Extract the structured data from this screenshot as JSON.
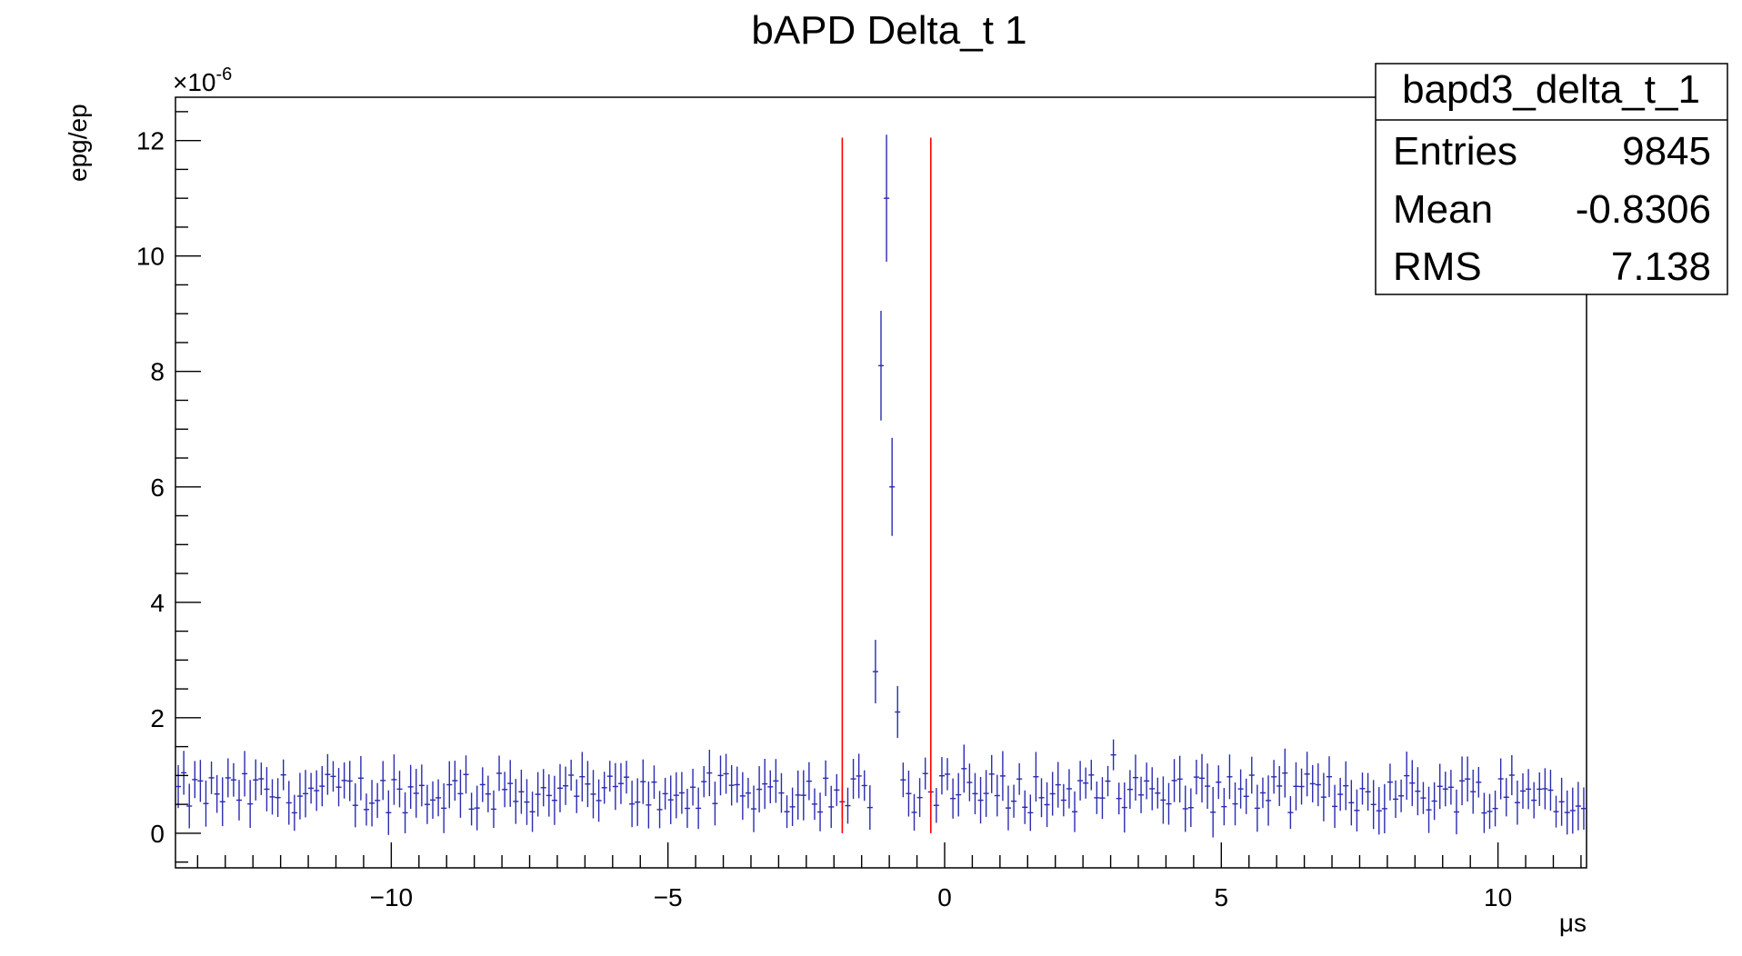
{
  "chart_data": {
    "type": "scatter",
    "title": "bAPD Delta_t 1",
    "xlabel": "μs",
    "ylabel": "epg/ep",
    "y_multiplier_label": "×10",
    "y_multiplier_exponent": "-6",
    "xlim": [
      -13.9,
      11.6
    ],
    "ylim": [
      -0.6,
      12.75
    ],
    "x_ticks": [
      -10,
      -5,
      0,
      5,
      10
    ],
    "x_tick_labels": [
      "−10",
      "−5",
      "0",
      "5",
      "10"
    ],
    "y_ticks": [
      0,
      2,
      4,
      6,
      8,
      10,
      12
    ],
    "y_tick_labels": [
      "0",
      "2",
      "4",
      "6",
      "8",
      "10",
      "12"
    ],
    "grid": false,
    "bin_width": 0.1,
    "background_level": 0.7,
    "background_error": 0.35,
    "series": [
      {
        "name": "bapd3_delta_t_1",
        "color": "#2b2bb0",
        "peak_points": [
          {
            "x": -1.25,
            "y": 2.8,
            "err": 0.55
          },
          {
            "x": -1.15,
            "y": 8.1,
            "err": 0.95
          },
          {
            "x": -1.05,
            "y": 11.0,
            "err": 1.1
          },
          {
            "x": -0.95,
            "y": 6.0,
            "err": 0.85
          },
          {
            "x": -0.85,
            "y": 2.1,
            "err": 0.45
          }
        ]
      }
    ],
    "cut_lines": {
      "color": "#ff0000",
      "x": [
        -1.85,
        -0.25
      ],
      "y_range": [
        0,
        12.05
      ]
    }
  },
  "stats_box": {
    "title": "bapd3_delta_t_1",
    "rows": [
      {
        "label": "Entries",
        "value": "9845"
      },
      {
        "label": "Mean",
        "value": "-0.8306"
      },
      {
        "label": "RMS",
        "value": "7.138"
      }
    ]
  }
}
